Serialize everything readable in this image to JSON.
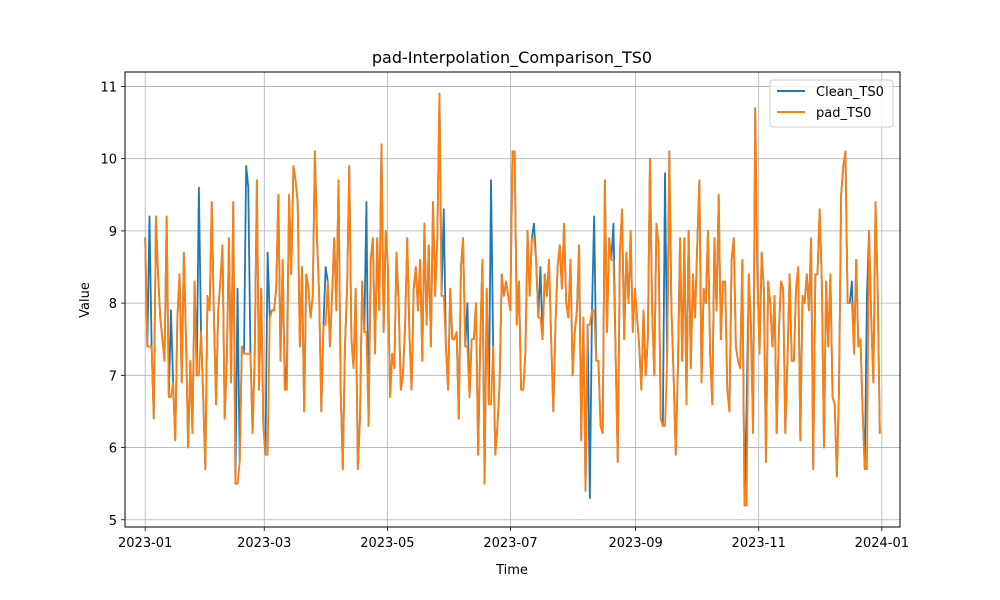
{
  "chart_data": {
    "type": "line",
    "title": "pad-Interpolation_Comparison_TS0",
    "xlabel": "Time",
    "ylabel": "Value",
    "xlim": [
      "2022-12-22",
      "2024-01-10"
    ],
    "ylim": [
      4.9,
      11.2
    ],
    "x_ticks": [
      "2023-01",
      "2023-03",
      "2023-05",
      "2023-07",
      "2023-09",
      "2023-11",
      "2024-01"
    ],
    "y_ticks": [
      5,
      6,
      7,
      8,
      9,
      10,
      11
    ],
    "grid": true,
    "legend_position": "top-right",
    "x_start": "2023-01-01",
    "x_end": "2023-12-31",
    "series": [
      {
        "name": "Clean_TS0",
        "color": "#1f77b4",
        "values": [
          8.9,
          7.4,
          9.2,
          7.4,
          6.4,
          9.2,
          8.4,
          7.8,
          7.5,
          7.2,
          9.2,
          6.7,
          7.9,
          6.9,
          6.1,
          7.8,
          8.4,
          6.9,
          8.7,
          7.5,
          6.0,
          7.2,
          6.2,
          8.3,
          7.0,
          9.6,
          7.6,
          6.7,
          5.7,
          8.1,
          7.9,
          9.4,
          7.8,
          6.6,
          7.9,
          8.3,
          8.8,
          6.4,
          7.2,
          8.9,
          6.9,
          9.4,
          5.5,
          8.2,
          5.8,
          7.4,
          7.3,
          9.9,
          9.6,
          7.3,
          6.2,
          7.3,
          9.7,
          6.8,
          8.2,
          6.3,
          5.9,
          8.7,
          7.8,
          7.9,
          7.9,
          8.2,
          9.5,
          7.2,
          8.6,
          6.8,
          7.2,
          9.5,
          8.4,
          9.9,
          9.7,
          9.4,
          7.4,
          8.5,
          6.5,
          8.4,
          8.2,
          7.8,
          8.1,
          10.1,
          8.9,
          8.1,
          6.5,
          7.7,
          8.5,
          8.3,
          7.4,
          8.1,
          8.9,
          7.9,
          9.7,
          6.8,
          5.7,
          7.4,
          8.2,
          9.9,
          7.5,
          7.1,
          8.2,
          5.7,
          6.4,
          8.3,
          7.6,
          9.4,
          6.3,
          8.6,
          8.9,
          7.3,
          8.9,
          7.9,
          10.2,
          7.6,
          9.0,
          8.5,
          6.7,
          7.3,
          7.1,
          8.7,
          8.0,
          6.8,
          7.0,
          7.7,
          8.9,
          7.6,
          6.8,
          8.2,
          8.5,
          7.9,
          8.6,
          7.2,
          9.1,
          7.7,
          8.8,
          7.4,
          9.4,
          8.1,
          8.9,
          10.9,
          8.1,
          9.3,
          7.4,
          6.8,
          8.2,
          7.5,
          7.5,
          7.6,
          6.4,
          8.5,
          8.9,
          7.4,
          8.0,
          6.7,
          7.5,
          7.5,
          8.0,
          5.9,
          7.5,
          8.6,
          5.5,
          8.2,
          6.6,
          9.7,
          7.4,
          5.9,
          6.3,
          6.9,
          8.4,
          8.1,
          8.3,
          8.1,
          7.9,
          10.1,
          10.1,
          7.7,
          8.3,
          6.8,
          6.8,
          7.3,
          9.0,
          8.1,
          8.9,
          9.1,
          8.6,
          7.8,
          8.5,
          7.5,
          8.4,
          8.1,
          8.6,
          7.5,
          6.5,
          7.7,
          8.5,
          8.8,
          8.2,
          9.1,
          8.0,
          7.8,
          8.6,
          7.0,
          7.6,
          7.9,
          8.8,
          6.1,
          7.8,
          5.4,
          7.7,
          5.3,
          7.9,
          9.2,
          7.2,
          7.2,
          6.3,
          6.2,
          9.7,
          7.6,
          8.9,
          8.6,
          9.1,
          7.3,
          5.8,
          8.7,
          9.3,
          7.5,
          8.7,
          8.0,
          9.0,
          7.6,
          8.2,
          7.8,
          7.4,
          6.8,
          7.9,
          7.0,
          7.5,
          10.0,
          7.9,
          7.0,
          9.1,
          8.8,
          6.4,
          6.3,
          9.8,
          7.2,
          10.1,
          7.9,
          7.0,
          5.9,
          7.1,
          8.9,
          7.2,
          8.9,
          6.6,
          9.0,
          7.1,
          8.4,
          7.8,
          8.8,
          9.7,
          6.9,
          8.2,
          8.0,
          9.0,
          7.3,
          6.6,
          8.9,
          7.9,
          9.5,
          7.5,
          8.3,
          8.3,
          6.8,
          6.5,
          8.6,
          8.9,
          7.4,
          7.2,
          7.1,
          8.6,
          5.2,
          6.6,
          8.4,
          7.7,
          6.2,
          10.7,
          8.4,
          7.3,
          8.7,
          8.2,
          5.8,
          8.3,
          8.0,
          7.4,
          8.1,
          6.2,
          7.6,
          8.3,
          8.2,
          6.2,
          7.2,
          8.4,
          7.2,
          7.2,
          8.2,
          8.5,
          6.1,
          8.1,
          8.0,
          8.4,
          7.9,
          8.9,
          5.7,
          8.4,
          8.4,
          9.3,
          8.3,
          6.0,
          8.3,
          7.4,
          8.4,
          6.7,
          6.6,
          5.6,
          6.8,
          9.5,
          9.9,
          10.1,
          8.0,
          8.0,
          8.3,
          7.3,
          8.6,
          7.4,
          7.5,
          6.5,
          5.7,
          8.1,
          9.0,
          7.8,
          6.9,
          9.4,
          8.2,
          6.2
        ]
      },
      {
        "name": "pad_TS0",
        "color": "#ff7f0e",
        "values": [
          8.9,
          7.4,
          7.4,
          7.4,
          6.4,
          9.2,
          8.4,
          7.8,
          7.5,
          7.2,
          9.2,
          6.7,
          6.7,
          6.9,
          6.1,
          7.8,
          8.4,
          6.9,
          8.7,
          7.5,
          6.0,
          7.2,
          6.2,
          8.3,
          7.0,
          7.0,
          7.6,
          6.7,
          5.7,
          8.1,
          7.9,
          9.4,
          7.8,
          6.6,
          7.9,
          8.3,
          8.8,
          6.4,
          7.2,
          8.9,
          6.9,
          9.4,
          5.5,
          5.5,
          5.8,
          7.4,
          7.3,
          7.3,
          7.3,
          7.3,
          6.2,
          7.3,
          9.7,
          6.8,
          8.2,
          6.3,
          5.9,
          5.9,
          7.8,
          7.9,
          7.9,
          8.2,
          9.5,
          7.2,
          8.6,
          6.8,
          6.8,
          9.5,
          8.4,
          9.9,
          9.7,
          9.4,
          7.4,
          8.5,
          6.5,
          8.4,
          8.2,
          7.8,
          8.1,
          10.1,
          8.9,
          8.1,
          6.5,
          7.7,
          7.7,
          8.3,
          7.4,
          8.1,
          8.9,
          7.9,
          9.7,
          6.8,
          5.7,
          7.4,
          8.2,
          9.9,
          7.5,
          7.1,
          8.2,
          5.7,
          6.4,
          8.3,
          7.6,
          7.6,
          6.3,
          8.6,
          8.9,
          7.3,
          8.9,
          7.9,
          10.2,
          7.6,
          9.0,
          8.5,
          6.7,
          7.3,
          7.1,
          8.7,
          8.0,
          6.8,
          7.0,
          7.7,
          8.9,
          7.6,
          6.8,
          8.2,
          8.5,
          7.9,
          8.6,
          7.2,
          9.1,
          7.7,
          8.8,
          7.4,
          9.4,
          8.1,
          8.9,
          10.9,
          8.1,
          8.1,
          7.4,
          6.8,
          8.2,
          7.5,
          7.5,
          7.6,
          6.4,
          8.5,
          8.9,
          7.4,
          7.4,
          6.7,
          7.5,
          7.5,
          8.0,
          5.9,
          7.5,
          8.6,
          5.5,
          8.2,
          6.6,
          6.6,
          7.4,
          5.9,
          6.3,
          6.9,
          8.4,
          8.1,
          8.3,
          8.1,
          7.9,
          10.1,
          10.1,
          7.7,
          8.3,
          6.8,
          6.8,
          7.3,
          9.0,
          8.1,
          8.9,
          8.9,
          8.6,
          7.8,
          7.8,
          7.5,
          8.4,
          8.1,
          8.6,
          7.5,
          6.5,
          7.7,
          8.5,
          8.8,
          8.2,
          9.1,
          8.0,
          7.8,
          8.6,
          7.0,
          7.6,
          7.9,
          8.8,
          6.1,
          7.8,
          5.4,
          7.7,
          7.7,
          7.9,
          7.9,
          7.2,
          7.2,
          6.3,
          6.2,
          9.7,
          7.6,
          8.9,
          8.6,
          8.6,
          7.3,
          5.8,
          8.7,
          9.3,
          7.5,
          8.7,
          8.0,
          9.0,
          7.6,
          8.2,
          7.8,
          7.4,
          6.8,
          7.9,
          7.0,
          7.5,
          10.0,
          7.9,
          7.0,
          9.1,
          8.8,
          6.4,
          6.3,
          6.3,
          7.2,
          10.1,
          7.9,
          7.0,
          5.9,
          7.1,
          8.9,
          7.2,
          8.9,
          6.6,
          9.0,
          7.1,
          8.4,
          7.8,
          8.8,
          9.7,
          6.9,
          8.2,
          8.0,
          9.0,
          7.3,
          6.6,
          8.9,
          7.9,
          9.5,
          7.5,
          8.3,
          8.3,
          6.8,
          6.5,
          8.6,
          8.9,
          7.4,
          7.2,
          7.1,
          8.6,
          5.2,
          5.2,
          8.4,
          7.7,
          6.2,
          10.7,
          8.4,
          7.3,
          8.7,
          8.2,
          5.8,
          8.3,
          8.0,
          7.4,
          8.1,
          6.2,
          7.6,
          8.3,
          8.2,
          6.2,
          7.2,
          8.4,
          7.2,
          7.2,
          8.2,
          8.5,
          6.1,
          8.1,
          8.0,
          8.4,
          7.9,
          8.9,
          5.7,
          8.4,
          8.4,
          9.3,
          8.3,
          6.0,
          8.3,
          7.4,
          8.4,
          6.7,
          6.6,
          5.6,
          6.8,
          9.5,
          9.9,
          10.1,
          8.0,
          8.0,
          8.0,
          7.3,
          8.6,
          7.4,
          7.5,
          6.5,
          5.7,
          5.7,
          9.0,
          7.8,
          6.9,
          9.4,
          8.2,
          6.2
        ]
      }
    ]
  }
}
